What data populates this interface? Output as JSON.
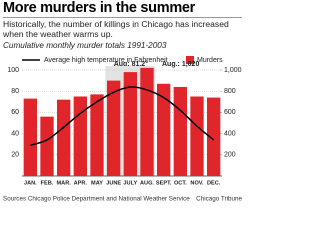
{
  "chart_data": {
    "type": "bar-line",
    "title": "More murders in the summer",
    "subtitle": "Historically, the number of killings in Chicago has increased when the weather warms up.",
    "note": "Cumulative monthly murder totals 1991-2003",
    "annotations": [
      "Aug: 81.2°",
      "Aug.: 1,020"
    ],
    "source": "Sources  Chicago Police Department and National Weather Service",
    "credit": "Chicago Tribune",
    "categories": [
      "JAN.",
      "FEB.",
      "MAR.",
      "APR.",
      "MAY",
      "JUNE",
      "JULY",
      "AUG.",
      "SEPT.",
      "OCT.",
      "NOV.",
      "DEC."
    ],
    "highlight": [
      5,
      6,
      7
    ],
    "highlight_color": "#e3e3e3",
    "series": [
      {
        "name": "Murders",
        "type": "bar",
        "axis": "y2",
        "color": "#e0262b",
        "values": [
          730,
          560,
          720,
          750,
          770,
          900,
          980,
          1020,
          870,
          840,
          750,
          740
        ]
      },
      {
        "name": "Average high temperature in Fahrenheit",
        "type": "line",
        "axis": "y",
        "color": "#000000",
        "values": [
          29,
          34,
          46,
          59,
          70,
          79,
          84,
          81.2,
          74,
          62,
          47,
          34
        ]
      }
    ],
    "ylim": [
      0,
      100
    ],
    "yticks": [
      20,
      40,
      60,
      80,
      100
    ],
    "y2lim": [
      0,
      1000
    ],
    "y2ticks": [
      200,
      400,
      600,
      800,
      {
        "value": 1000,
        "label": "1,000"
      }
    ],
    "grid": true
  }
}
